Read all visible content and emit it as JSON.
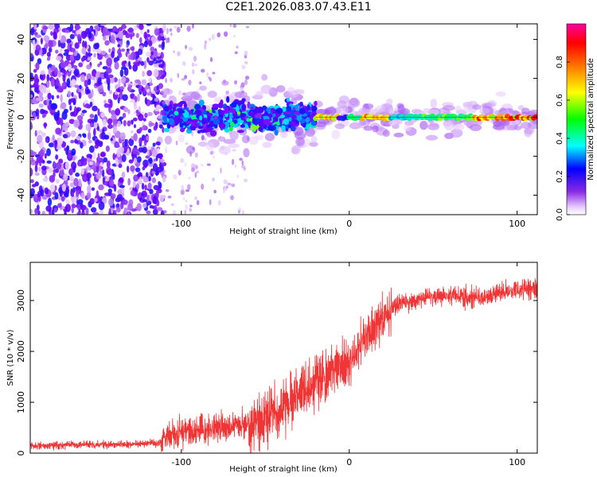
{
  "title": "C2E1.2026.083.07.43.E11",
  "chart_data": [
    {
      "type": "heatmap",
      "title": "C2E1.2026.083.07.43.E11",
      "xlabel": "Height of straight line (km)",
      "ylabel": "Frequency (Hz)",
      "xlim": [
        -190,
        112
      ],
      "ylim": [
        -50,
        48
      ],
      "xticks": [
        -100,
        0,
        100
      ],
      "yticks": [
        -40,
        -20,
        0,
        20,
        40
      ],
      "colorbar": {
        "label": "Normalized spectral amplitude",
        "range": [
          0.0,
          1.0
        ],
        "ticks": [
          0.0,
          0.2,
          0.4,
          0.6,
          0.8
        ],
        "colormap": "rainbow (violet → blue → cyan → green → yellow → red → magenta)"
      },
      "features": {
        "noise_region_x": [
          -190,
          -110
        ],
        "scattered_region_x": [
          -110,
          -60
        ],
        "stable_line_start_x": -20,
        "central_frequency_hz": 0,
        "broad_band_frequency_halfwidth_hz": 10
      }
    },
    {
      "type": "line",
      "xlabel": "Height of straight line (km)",
      "ylabel": "SNR (10 * v/v)",
      "xlim": [
        -190,
        112
      ],
      "ylim": [
        0,
        3750
      ],
      "xticks": [
        -100,
        0,
        100
      ],
      "yticks": [
        0,
        1000,
        2000,
        3000
      ],
      "color": "#ef3535",
      "series": [
        {
          "name": "SNR",
          "x": [
            -190,
            -170,
            -150,
            -130,
            -112,
            -108,
            -90,
            -80,
            -70,
            -60,
            -50,
            -40,
            -30,
            -22,
            -15,
            -10,
            -5,
            0,
            5,
            10,
            15,
            20,
            30,
            40,
            50,
            60,
            70,
            80,
            90,
            100,
            112
          ],
          "y": [
            150,
            160,
            170,
            180,
            190,
            350,
            450,
            500,
            520,
            550,
            650,
            900,
            1150,
            1400,
            1500,
            1600,
            1700,
            1800,
            2000,
            2300,
            2450,
            2700,
            2950,
            3000,
            3080,
            3100,
            3060,
            3050,
            3150,
            3200,
            3250
          ]
        }
      ]
    }
  ]
}
